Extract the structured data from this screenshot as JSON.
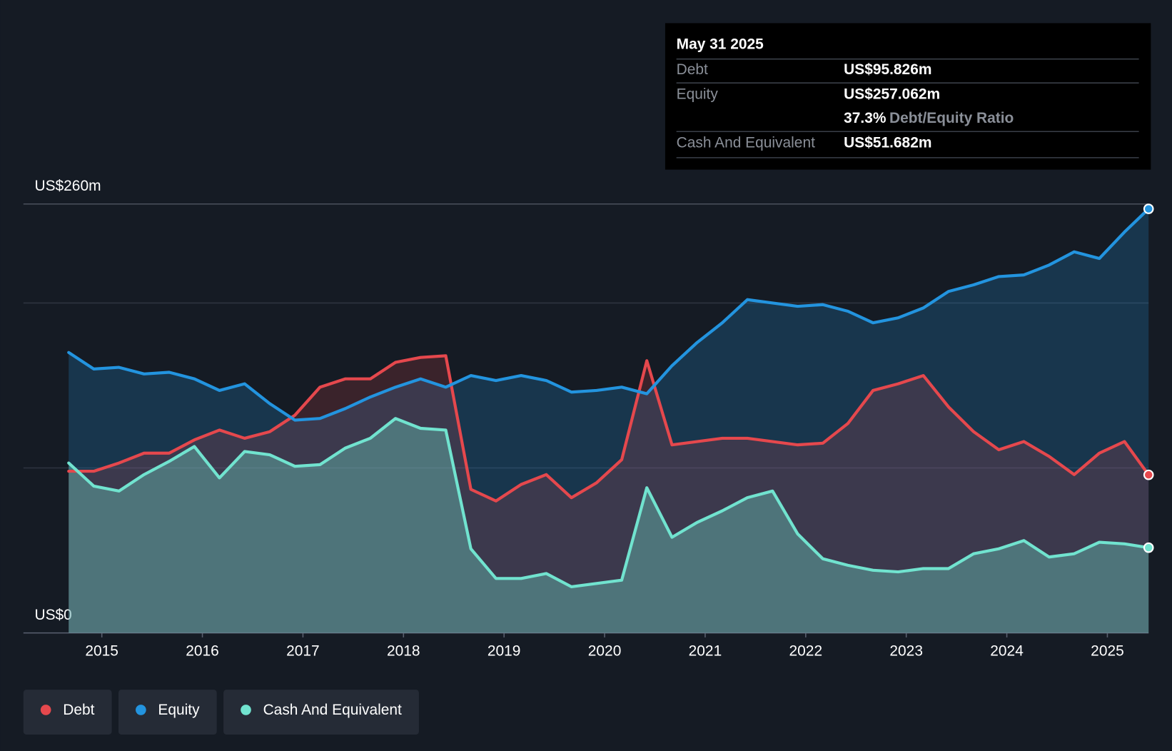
{
  "chart_data": {
    "type": "line",
    "x": [
      2014.67,
      2014.92,
      2015.17,
      2015.42,
      2015.67,
      2015.92,
      2016.17,
      2016.42,
      2016.67,
      2016.92,
      2017.17,
      2017.42,
      2017.67,
      2017.92,
      2018.17,
      2018.42,
      2018.67,
      2018.92,
      2019.17,
      2019.42,
      2019.67,
      2019.92,
      2020.17,
      2020.42,
      2020.67,
      2020.92,
      2021.17,
      2021.42,
      2021.67,
      2021.92,
      2022.17,
      2022.42,
      2022.67,
      2022.92,
      2023.17,
      2023.42,
      2023.67,
      2023.92,
      2024.17,
      2024.42,
      2024.67,
      2024.92,
      2025.17,
      2025.41
    ],
    "series": [
      {
        "name": "Debt",
        "color": "#e5484d",
        "values": [
          98,
          98,
          103,
          109,
          109,
          117,
          123,
          118,
          122,
          132,
          149,
          154,
          154,
          164,
          167,
          168,
          87,
          80,
          90,
          96,
          82,
          91,
          105,
          165,
          114,
          116,
          118,
          118,
          116,
          114,
          115,
          127,
          147,
          151,
          156,
          137,
          122,
          111,
          116,
          107,
          96,
          109,
          116,
          95.826
        ]
      },
      {
        "name": "Equity",
        "color": "#2394df",
        "values": [
          170,
          160,
          161,
          157,
          158,
          154,
          147,
          151,
          139,
          129,
          130,
          136,
          143,
          149,
          154,
          149,
          156,
          153,
          156,
          153,
          146,
          147,
          149,
          145,
          162,
          176,
          188,
          202,
          200,
          198,
          199,
          195,
          188,
          191,
          197,
          207,
          211,
          216,
          217,
          223,
          231,
          227,
          243,
          257.062
        ]
      },
      {
        "name": "Cash And Equivalent",
        "color": "#71e3cf",
        "values": [
          103,
          89,
          86,
          96,
          104,
          113,
          94,
          110,
          108,
          101,
          102,
          112,
          118,
          130,
          124,
          123,
          51,
          33,
          33,
          36,
          28,
          30,
          32,
          88,
          58,
          67,
          74,
          82,
          86,
          60,
          45,
          41,
          38,
          37,
          39,
          39,
          48,
          51,
          56,
          46,
          48,
          55,
          54,
          51.682
        ]
      }
    ],
    "xlim": [
      2014.22,
      2025.41
    ],
    "xticks": [
      2015,
      2016,
      2017,
      2018,
      2019,
      2020,
      2021,
      2022,
      2023,
      2024,
      2025
    ],
    "ylim": [
      0,
      260
    ],
    "yticks": [
      {
        "value": 0,
        "label": "US$0"
      },
      {
        "value": 260,
        "label": "US$260m"
      }
    ],
    "grid": [
      100,
      200
    ],
    "tooltip": {
      "date": "May 31 2025",
      "rows": [
        {
          "label": "Debt",
          "value": "US$95.826m"
        },
        {
          "label": "Equity",
          "value": "US$257.062m"
        },
        {
          "label": "Cash And Equivalent",
          "value": "US$51.682m"
        }
      ],
      "ratio": "37.3%",
      "ratio_label": "Debt/Equity Ratio"
    }
  }
}
